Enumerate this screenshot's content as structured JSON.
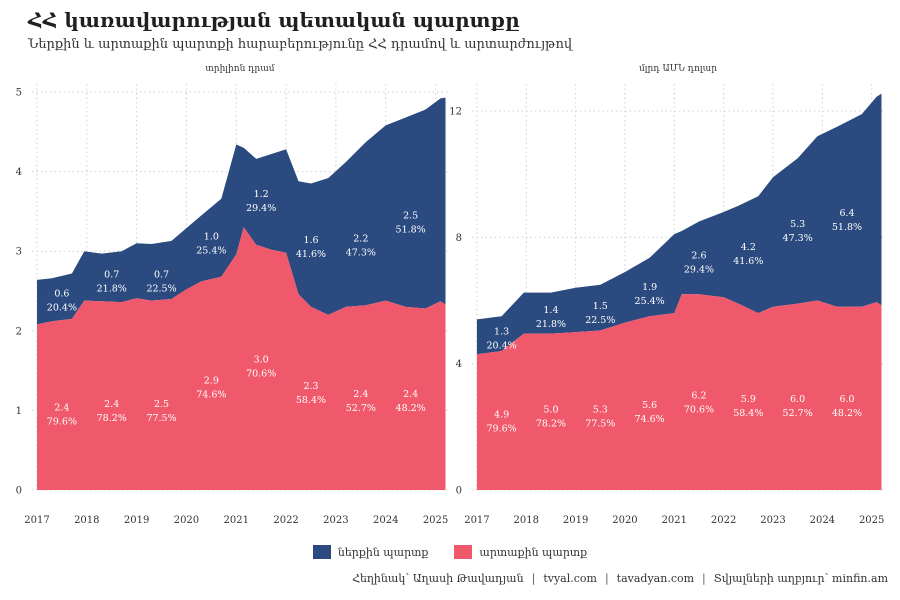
{
  "title": "ՀՀ կառավարության պետական պարտքը",
  "subtitle": "Ներքին և արտաքին պարտքի հարաբերությունը ՀՀ դրամով և արտարժույթով",
  "colors": {
    "domestic": "#2b4a7f",
    "external": "#f0596b"
  },
  "legend": {
    "domestic": "ներքին պարտք",
    "external": "արտաքին պարտք"
  },
  "caption": {
    "author": "Հեղինակ՝ Աղասի Թավադյան",
    "site1": "tvyal.com",
    "site2": "tavadyan.com",
    "source": "Տվյալների աղբյուր՝ minfin.am",
    "sep": "|"
  },
  "chart_data": [
    {
      "type": "area",
      "stacked": true,
      "panel_title": "տրիլիոն դրամ",
      "ylim": [
        0,
        5
      ],
      "yticks": [
        0,
        1,
        2,
        3,
        4,
        5
      ],
      "xlim": [
        2016.9,
        2025.25
      ],
      "xticks": [
        2017,
        2018,
        2019,
        2020,
        2021,
        2022,
        2023,
        2024,
        2025
      ],
      "x_labels": [
        "2017",
        "2018",
        "2019",
        "2020",
        "2021",
        "2022",
        "2023",
        "2024",
        "2025"
      ],
      "grid": true,
      "series": [
        {
          "name": "արտաքին պարտք",
          "key": "external",
          "points": [
            [
              2017.0,
              2.08
            ],
            [
              2017.3,
              2.12
            ],
            [
              2017.7,
              2.15
            ],
            [
              2017.95,
              2.38
            ],
            [
              2018.3,
              2.37
            ],
            [
              2018.7,
              2.36
            ],
            [
              2019.0,
              2.41
            ],
            [
              2019.3,
              2.38
            ],
            [
              2019.7,
              2.4
            ],
            [
              2020.0,
              2.52
            ],
            [
              2020.3,
              2.62
            ],
            [
              2020.7,
              2.68
            ],
            [
              2021.0,
              2.96
            ],
            [
              2021.15,
              3.3
            ],
            [
              2021.4,
              3.08
            ],
            [
              2021.7,
              3.02
            ],
            [
              2022.0,
              2.98
            ],
            [
              2022.25,
              2.46
            ],
            [
              2022.5,
              2.3
            ],
            [
              2022.85,
              2.2
            ],
            [
              2023.2,
              2.3
            ],
            [
              2023.6,
              2.32
            ],
            [
              2024.0,
              2.38
            ],
            [
              2024.4,
              2.3
            ],
            [
              2024.8,
              2.28
            ],
            [
              2025.1,
              2.37
            ],
            [
              2025.2,
              2.33
            ]
          ]
        },
        {
          "name": "ներքին պարտք",
          "key": "domestic",
          "points": [
            [
              2017.0,
              0.56
            ],
            [
              2017.3,
              0.54
            ],
            [
              2017.7,
              0.57
            ],
            [
              2017.95,
              0.62
            ],
            [
              2018.3,
              0.6
            ],
            [
              2018.7,
              0.64
            ],
            [
              2019.0,
              0.69
            ],
            [
              2019.3,
              0.71
            ],
            [
              2019.7,
              0.73
            ],
            [
              2020.0,
              0.77
            ],
            [
              2020.3,
              0.83
            ],
            [
              2020.7,
              0.98
            ],
            [
              2021.0,
              1.38
            ],
            [
              2021.15,
              1.0
            ],
            [
              2021.4,
              1.08
            ],
            [
              2021.7,
              1.2
            ],
            [
              2022.0,
              1.3
            ],
            [
              2022.25,
              1.42
            ],
            [
              2022.5,
              1.55
            ],
            [
              2022.85,
              1.72
            ],
            [
              2023.2,
              1.82
            ],
            [
              2023.6,
              2.05
            ],
            [
              2024.0,
              2.2
            ],
            [
              2024.4,
              2.38
            ],
            [
              2024.8,
              2.5
            ],
            [
              2025.1,
              2.55
            ],
            [
              2025.2,
              2.6
            ]
          ]
        }
      ],
      "annotations": [
        {
          "x": 2017.5,
          "dom_val": "0.6",
          "dom_pct": "20.4%",
          "ext_val": "2.4",
          "ext_pct": "79.6%",
          "dom_y": 2.43,
          "ext_y": 1.0
        },
        {
          "x": 2018.5,
          "dom_val": "0.7",
          "dom_pct": "21.8%",
          "ext_val": "2.4",
          "ext_pct": "78.2%",
          "dom_y": 2.67,
          "ext_y": 1.04
        },
        {
          "x": 2019.5,
          "dom_val": "0.7",
          "dom_pct": "22.5%",
          "ext_val": "2.5",
          "ext_pct": "77.5%",
          "dom_y": 2.67,
          "ext_y": 1.04
        },
        {
          "x": 2020.5,
          "dom_val": "1.0",
          "dom_pct": "25.4%",
          "ext_val": "2.9",
          "ext_pct": "74.6%",
          "dom_y": 3.15,
          "ext_y": 1.34
        },
        {
          "x": 2021.5,
          "dom_val": "1.2",
          "dom_pct": "29.4%",
          "ext_val": "3.0",
          "ext_pct": "70.6%",
          "dom_y": 3.68,
          "ext_y": 1.6
        },
        {
          "x": 2022.5,
          "dom_val": "1.6",
          "dom_pct": "41.6%",
          "ext_val": "2.3",
          "ext_pct": "58.4%",
          "dom_y": 3.1,
          "ext_y": 1.27
        },
        {
          "x": 2023.5,
          "dom_val": "2.2",
          "dom_pct": "47.3%",
          "ext_val": "2.4",
          "ext_pct": "52.7%",
          "dom_y": 3.12,
          "ext_y": 1.17
        },
        {
          "x": 2024.5,
          "dom_val": "2.5",
          "dom_pct": "51.8%",
          "ext_val": "2.4",
          "ext_pct": "48.2%",
          "dom_y": 3.41,
          "ext_y": 1.17
        }
      ]
    },
    {
      "type": "area",
      "stacked": true,
      "panel_title": "մլրդ ԱՄՆ դոլար",
      "ylim": [
        0,
        12.6
      ],
      "yticks": [
        0,
        4,
        8,
        12
      ],
      "xlim": [
        2016.9,
        2025.25
      ],
      "xticks": [
        2017,
        2018,
        2019,
        2020,
        2021,
        2022,
        2023,
        2024,
        2025
      ],
      "x_labels": [
        "2017",
        "2018",
        "2019",
        "2020",
        "2021",
        "2022",
        "2023",
        "2024",
        "2025"
      ],
      "grid": true,
      "series": [
        {
          "name": "արտաքին պարտք",
          "key": "external",
          "points": [
            [
              2017.0,
              4.3
            ],
            [
              2017.5,
              4.4
            ],
            [
              2017.95,
              4.95
            ],
            [
              2018.5,
              4.95
            ],
            [
              2019.0,
              5.0
            ],
            [
              2019.5,
              5.05
            ],
            [
              2020.0,
              5.3
            ],
            [
              2020.5,
              5.5
            ],
            [
              2021.0,
              5.6
            ],
            [
              2021.15,
              6.2
            ],
            [
              2021.5,
              6.2
            ],
            [
              2022.0,
              6.1
            ],
            [
              2022.3,
              5.9
            ],
            [
              2022.7,
              5.6
            ],
            [
              2023.0,
              5.8
            ],
            [
              2023.5,
              5.9
            ],
            [
              2023.9,
              6.0
            ],
            [
              2024.3,
              5.8
            ],
            [
              2024.8,
              5.8
            ],
            [
              2025.1,
              5.95
            ],
            [
              2025.2,
              5.85
            ]
          ]
        },
        {
          "name": "ներքին պարտք",
          "key": "domestic",
          "points": [
            [
              2017.0,
              1.1
            ],
            [
              2017.5,
              1.1
            ],
            [
              2017.95,
              1.3
            ],
            [
              2018.5,
              1.3
            ],
            [
              2019.0,
              1.4
            ],
            [
              2019.5,
              1.45
            ],
            [
              2020.0,
              1.6
            ],
            [
              2020.5,
              1.85
            ],
            [
              2021.0,
              2.5
            ],
            [
              2021.15,
              2.0
            ],
            [
              2021.5,
              2.3
            ],
            [
              2022.0,
              2.7
            ],
            [
              2022.3,
              3.1
            ],
            [
              2022.7,
              3.7
            ],
            [
              2023.0,
              4.1
            ],
            [
              2023.5,
              4.6
            ],
            [
              2023.9,
              5.2
            ],
            [
              2024.3,
              5.7
            ],
            [
              2024.8,
              6.1
            ],
            [
              2025.1,
              6.5
            ],
            [
              2025.2,
              6.7
            ]
          ]
        }
      ],
      "annotations": [
        {
          "x": 2017.5,
          "dom_val": "1.3",
          "dom_pct": "20.4%",
          "ext_val": "4.9",
          "ext_pct": "79.6%",
          "dom_y": 4.93,
          "ext_y": 2.3
        },
        {
          "x": 2018.5,
          "dom_val": "1.4",
          "dom_pct": "21.8%",
          "ext_val": "5.0",
          "ext_pct": "78.2%",
          "dom_y": 5.6,
          "ext_y": 2.45
        },
        {
          "x": 2019.5,
          "dom_val": "1.5",
          "dom_pct": "22.5%",
          "ext_val": "5.3",
          "ext_pct": "77.5%",
          "dom_y": 5.73,
          "ext_y": 2.45
        },
        {
          "x": 2020.5,
          "dom_val": "1.9",
          "dom_pct": "25.4%",
          "ext_val": "5.6",
          "ext_pct": "74.6%",
          "dom_y": 6.33,
          "ext_y": 2.6
        },
        {
          "x": 2021.5,
          "dom_val": "2.6",
          "dom_pct": "29.4%",
          "ext_val": "6.2",
          "ext_pct": "70.6%",
          "dom_y": 7.33,
          "ext_y": 2.9
        },
        {
          "x": 2022.5,
          "dom_val": "4.2",
          "dom_pct": "41.6%",
          "ext_val": "5.9",
          "ext_pct": "58.4%",
          "dom_y": 7.6,
          "ext_y": 2.78
        },
        {
          "x": 2023.5,
          "dom_val": "5.3",
          "dom_pct": "47.3%",
          "ext_val": "6.0",
          "ext_pct": "52.7%",
          "dom_y": 8.33,
          "ext_y": 2.78
        },
        {
          "x": 2024.5,
          "dom_val": "6.4",
          "dom_pct": "51.8%",
          "ext_val": "6.0",
          "ext_pct": "48.2%",
          "dom_y": 8.67,
          "ext_y": 2.78
        }
      ]
    }
  ]
}
